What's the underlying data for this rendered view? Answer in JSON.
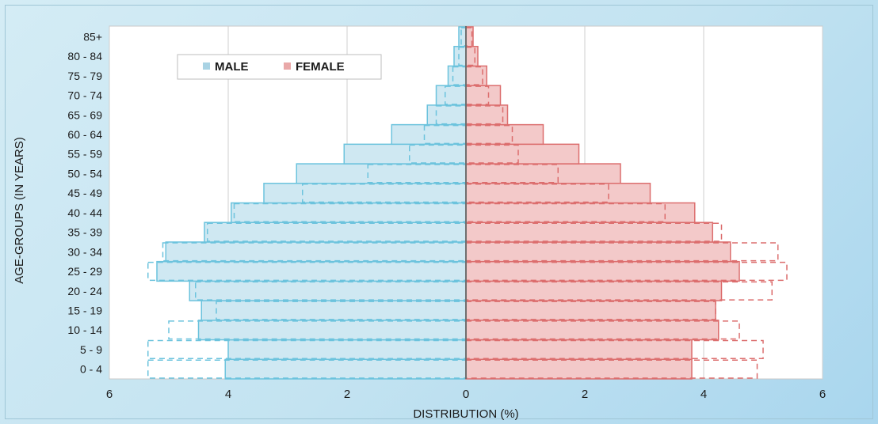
{
  "chart_data": {
    "type": "bar",
    "orientation": "horizontal-population-pyramid",
    "xlabel": "DISTRIBUTION (%)",
    "ylabel": "AGE-GROUPS (IN YEARS)",
    "xlim": [
      -6,
      6
    ],
    "x_tick_values": [
      -6,
      -4,
      -2,
      0,
      2,
      4,
      6
    ],
    "x_tick_labels": [
      "6",
      "4",
      "2",
      "0",
      "2",
      "4",
      "6"
    ],
    "grid": "vertical",
    "legend": {
      "position": "top-left",
      "entries": [
        "MALE",
        "FEMALE"
      ]
    },
    "colors": {
      "male_fill": "#cfe8f2",
      "male_line": "#6cc3dd",
      "female_fill": "#f3c9c9",
      "female_line": "#dc6e6e",
      "axis": "#6f6f6f",
      "grid": "#cfcfcf"
    },
    "categories": [
      "0 - 4",
      "5 - 9",
      "10 - 14",
      "15 - 19",
      "20 - 24",
      "25 - 29",
      "30 - 34",
      "35 - 39",
      "40 - 44",
      "45 - 49",
      "50 - 54",
      "55 - 59",
      "60 - 64",
      "65 - 69",
      "70 - 74",
      "75 - 79",
      "80 - 84",
      "85+"
    ],
    "series": [
      {
        "name": "MALE",
        "style": "filled",
        "values": [
          4.05,
          4.0,
          4.5,
          4.45,
          4.65,
          5.2,
          5.05,
          4.4,
          3.95,
          3.4,
          2.85,
          2.05,
          1.25,
          0.65,
          0.5,
          0.3,
          0.2,
          0.12
        ]
      },
      {
        "name": "FEMALE",
        "style": "filled",
        "values": [
          3.8,
          3.8,
          4.25,
          4.2,
          4.3,
          4.6,
          4.45,
          4.15,
          3.85,
          3.1,
          2.6,
          1.9,
          1.3,
          0.7,
          0.58,
          0.35,
          0.2,
          0.12
        ]
      },
      {
        "name": "MALE",
        "style": "dashed",
        "values": [
          5.35,
          5.35,
          5.0,
          4.2,
          4.55,
          5.35,
          5.1,
          4.35,
          3.9,
          2.75,
          1.65,
          0.95,
          0.7,
          0.5,
          0.35,
          0.22,
          0.12,
          0.08
        ]
      },
      {
        "name": "FEMALE",
        "style": "dashed",
        "values": [
          4.9,
          5.0,
          4.6,
          4.2,
          5.15,
          5.4,
          5.25,
          4.3,
          3.35,
          2.4,
          1.55,
          0.88,
          0.78,
          0.62,
          0.38,
          0.28,
          0.15,
          0.1
        ]
      }
    ]
  }
}
